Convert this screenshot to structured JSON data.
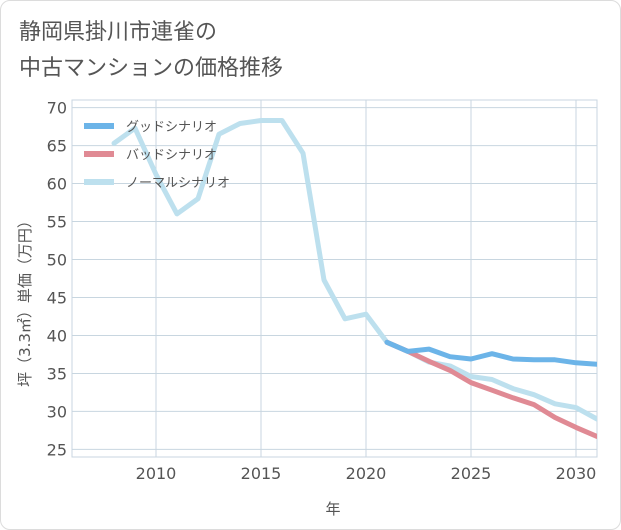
{
  "title_lines": [
    "静岡県掛川市連雀の",
    "中古マンションの価格推移"
  ],
  "chart_data": {
    "type": "line",
    "xlabel": "年",
    "ylabel": "坪（3.3㎡）単価（万円）",
    "xlim": [
      2006,
      2031
    ],
    "ylim": [
      24,
      71
    ],
    "x_ticks": [
      2010,
      2015,
      2020,
      2025,
      2030
    ],
    "y_ticks": [
      25,
      30,
      35,
      40,
      45,
      50,
      55,
      60,
      65,
      70
    ],
    "grid": true,
    "legend_position": "top-left",
    "series": [
      {
        "name": "グッドシナリオ",
        "color": "#6cb4e8",
        "x": [
          2021,
          2022,
          2023,
          2024,
          2025,
          2026,
          2027,
          2028,
          2029,
          2030,
          2031
        ],
        "values": [
          39.1,
          37.9,
          38.2,
          37.2,
          36.9,
          37.6,
          36.9,
          36.8,
          36.8,
          36.4,
          36.2
        ]
      },
      {
        "name": "バッドシナリオ",
        "color": "#e08a94",
        "x": [
          2021,
          2022,
          2023,
          2024,
          2025,
          2026,
          2027,
          2028,
          2029,
          2030,
          2031
        ],
        "values": [
          39.1,
          37.9,
          36.6,
          35.4,
          33.8,
          32.8,
          31.8,
          30.9,
          29.2,
          27.9,
          26.7
        ]
      },
      {
        "name": "ノーマルシナリオ",
        "color": "#bde0ee",
        "x": [
          2008,
          2009,
          2010,
          2011,
          2012,
          2013,
          2014,
          2015,
          2016,
          2017,
          2018,
          2019,
          2020,
          2021,
          2022,
          2023,
          2024,
          2025,
          2026,
          2027,
          2028,
          2029,
          2030,
          2031
        ],
        "values": [
          65.3,
          67.3,
          61.2,
          56.0,
          58.0,
          66.5,
          67.9,
          68.3,
          68.3,
          64.0,
          47.3,
          42.2,
          42.8,
          39.1,
          37.9,
          36.5,
          36.0,
          34.6,
          34.2,
          33.0,
          32.2,
          31.0,
          30.5,
          29.0
        ]
      }
    ]
  }
}
